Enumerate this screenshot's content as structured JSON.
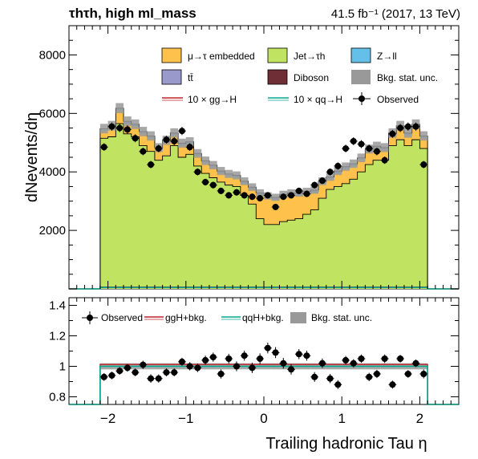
{
  "header": {
    "channel_title": "τhτh, high ml_mass",
    "lumi_text": "41.5 fb⁻¹ (2017, 13 TeV)"
  },
  "colors": {
    "embedded": "#fec24c",
    "jet_to_tau": "#c0e362",
    "z_to_ll": "#64c0e8",
    "ttbar": "#9999cc",
    "diboson": "#6f2d35",
    "stat_unc": "#999999",
    "ggH": "#bf2229",
    "qqH": "#00a88f"
  },
  "chart_data": [
    {
      "type": "histogram-stack",
      "ylabel": "dNevents/dη",
      "xlim": [
        -2.5,
        2.5
      ],
      "ylim": [
        0,
        9000
      ],
      "yticks": [
        2000,
        4000,
        6000,
        8000
      ],
      "bins": {
        "start": -2.1,
        "width": 0.1,
        "count": 42
      },
      "legend": {
        "placement": "top-right",
        "entries": [
          {
            "key": "embedded",
            "label": "μ→τ embedded"
          },
          {
            "key": "jet_to_tau",
            "label": "Jet→τh"
          },
          {
            "key": "z_to_ll",
            "label": "Z→ll"
          },
          {
            "key": "ttbar",
            "label": "tt̄"
          },
          {
            "key": "diboson",
            "label": "Diboson"
          },
          {
            "key": "stat_unc",
            "label": "Bkg. stat. unc."
          },
          {
            "key": "ggH",
            "label": "10 × gg→H"
          },
          {
            "key": "qqH",
            "label": "10 × qq→H"
          },
          {
            "key": "observed",
            "label": "Observed"
          }
        ]
      },
      "series": [
        {
          "name": "Jet→τh",
          "values": [
            5150,
            5200,
            5650,
            5300,
            5200,
            4900,
            4700,
            4400,
            4550,
            4900,
            4500,
            4600,
            4200,
            3950,
            3800,
            3650,
            3550,
            3500,
            3200,
            2900,
            2400,
            2200,
            2200,
            2300,
            2350,
            2400,
            2550,
            2700,
            3100,
            3400,
            3500,
            3600,
            3750,
            4000,
            4250,
            4400,
            4400,
            4900,
            5100,
            4900,
            5100,
            4800
          ]
        },
        {
          "name": "μ→τ embedded",
          "values": [
            250,
            300,
            450,
            350,
            350,
            400,
            450,
            350,
            450,
            350,
            400,
            350,
            350,
            350,
            350,
            300,
            300,
            300,
            400,
            500,
            800,
            900,
            850,
            850,
            850,
            800,
            700,
            600,
            500,
            350,
            450,
            500,
            450,
            400,
            450,
            400,
            350,
            350,
            400,
            350,
            450,
            350
          ]
        },
        {
          "name": "Z→ll",
          "values": [
            40,
            40,
            40,
            40,
            40,
            40,
            40,
            40,
            40,
            40,
            40,
            40,
            40,
            40,
            40,
            40,
            40,
            40,
            40,
            40,
            40,
            40,
            40,
            40,
            40,
            40,
            40,
            40,
            40,
            40,
            40,
            40,
            40,
            40,
            40,
            40,
            40,
            40,
            40,
            40,
            40,
            40
          ]
        },
        {
          "name": "tt̄",
          "values": [
            30,
            30,
            30,
            30,
            30,
            30,
            30,
            30,
            30,
            30,
            30,
            30,
            30,
            30,
            30,
            30,
            30,
            30,
            30,
            30,
            30,
            30,
            30,
            30,
            30,
            30,
            30,
            30,
            30,
            30,
            30,
            30,
            30,
            30,
            30,
            30,
            30,
            30,
            30,
            30,
            30,
            30
          ]
        },
        {
          "name": "Diboson",
          "values": [
            10,
            10,
            10,
            10,
            10,
            10,
            10,
            10,
            10,
            10,
            10,
            10,
            10,
            10,
            10,
            10,
            10,
            10,
            10,
            10,
            10,
            10,
            10,
            10,
            10,
            10,
            10,
            10,
            10,
            10,
            10,
            10,
            10,
            10,
            10,
            10,
            10,
            10,
            10,
            10,
            10,
            10
          ]
        }
      ],
      "signals": [
        {
          "name": "10 × gg→H",
          "values": [
            60,
            60,
            60,
            60,
            60,
            60,
            60,
            60,
            60,
            60,
            60,
            60,
            60,
            60,
            60,
            60,
            60,
            60,
            60,
            60,
            60,
            60,
            60,
            60,
            60,
            60,
            60,
            60,
            60,
            60,
            60,
            60,
            60,
            60,
            60,
            60,
            60,
            60,
            60,
            60,
            60,
            60
          ]
        },
        {
          "name": "10 × qq→H",
          "values": [
            50,
            50,
            50,
            50,
            50,
            50,
            50,
            50,
            50,
            50,
            50,
            50,
            50,
            50,
            50,
            50,
            50,
            50,
            50,
            50,
            50,
            50,
            50,
            50,
            50,
            50,
            50,
            50,
            50,
            50,
            50,
            50,
            50,
            50,
            50,
            50,
            50,
            50,
            50,
            50,
            50,
            50
          ]
        }
      ],
      "observed": {
        "name": "Observed",
        "values": [
          4850,
          5550,
          5500,
          5450,
          5150,
          4700,
          4250,
          4800,
          5100,
          5050,
          5400,
          4850,
          4000,
          3650,
          3550,
          3350,
          3200,
          3300,
          3200,
          3150,
          3100,
          3200,
          2800,
          3150,
          3200,
          3350,
          3250,
          3550,
          3700,
          4000,
          4200,
          4800,
          5050,
          4950,
          4800,
          4700,
          4400,
          5300,
          5500,
          5550,
          5550,
          4250
        ],
        "errors": [
          130,
          140,
          140,
          140,
          135,
          130,
          125,
          130,
          135,
          135,
          140,
          130,
          120,
          115,
          115,
          110,
          110,
          110,
          110,
          110,
          110,
          110,
          105,
          110,
          110,
          110,
          110,
          115,
          115,
          120,
          125,
          130,
          135,
          135,
          130,
          130,
          125,
          135,
          140,
          140,
          140,
          125
        ]
      }
    },
    {
      "type": "ratio",
      "xlabel": "Trailing hadronic Tau  η",
      "xlim": [
        -2.5,
        2.5
      ],
      "ylim": [
        0.75,
        1.45
      ],
      "xticks": [
        -2,
        -1,
        0,
        1,
        2
      ],
      "yticks": [
        0.8,
        1,
        1.2,
        1.4
      ],
      "legend": {
        "placement": "top",
        "entries": [
          {
            "key": "observed",
            "label": "Observed"
          },
          {
            "key": "ggH",
            "label": "ggH+bkg."
          },
          {
            "key": "qqH",
            "label": "qqH+bkg."
          },
          {
            "key": "stat_unc",
            "label": "Bkg. stat. unc."
          }
        ]
      },
      "observed_ratio": [
        0.93,
        0.94,
        0.97,
        0.99,
        0.96,
        1.01,
        0.92,
        0.92,
        0.96,
        0.96,
        1.03,
        1.0,
        0.99,
        1.04,
        1.06,
        0.95,
        1.05,
        1.0,
        1.07,
        0.99,
        1.05,
        1.12,
        1.09,
        1.02,
        0.98,
        1.08,
        1.07,
        0.93,
        1.02,
        0.92,
        0.88,
        1.04,
        1.02,
        1.05,
        0.93,
        0.95,
        1.05,
        0.88,
        1.05,
        0.95,
        1.02,
        0.95
      ],
      "ratio_errors": [
        0.025,
        0.025,
        0.025,
        0.025,
        0.025,
        0.027,
        0.028,
        0.027,
        0.026,
        0.026,
        0.026,
        0.027,
        0.028,
        0.03,
        0.03,
        0.03,
        0.032,
        0.032,
        0.033,
        0.034,
        0.035,
        0.035,
        0.036,
        0.035,
        0.034,
        0.033,
        0.033,
        0.032,
        0.031,
        0.03,
        0.029,
        0.028,
        0.027,
        0.027,
        0.027,
        0.027,
        0.028,
        0.026,
        0.025,
        0.025,
        0.025,
        0.029
      ],
      "stat_band": [
        0.02,
        0.02,
        0.02,
        0.02,
        0.02,
        0.02,
        0.02,
        0.02,
        0.02,
        0.02,
        0.02,
        0.02,
        0.02,
        0.02,
        0.02,
        0.02,
        0.02,
        0.02,
        0.02,
        0.02,
        0.02,
        0.02,
        0.02,
        0.02,
        0.02,
        0.02,
        0.02,
        0.02,
        0.02,
        0.02,
        0.02,
        0.02,
        0.02,
        0.02,
        0.02,
        0.02,
        0.02,
        0.02,
        0.02,
        0.02,
        0.02,
        0.02
      ],
      "ggH_ratio": 1.012,
      "qqH_ratio": 1.0
    }
  ]
}
